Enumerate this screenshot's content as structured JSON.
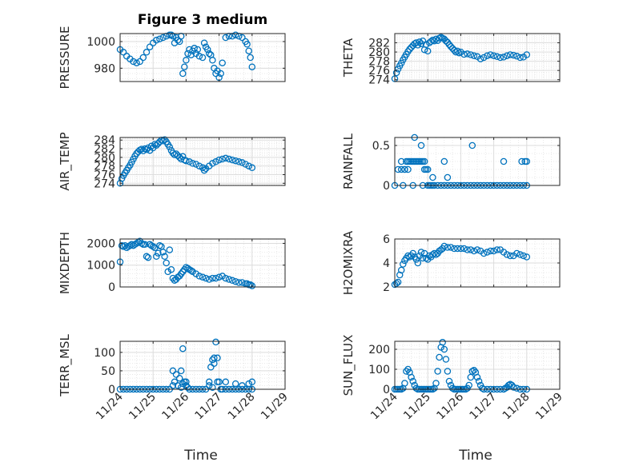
{
  "title": "Figure 3 medium",
  "x_label": "Time",
  "marker_color": "#0072BD",
  "chart_data": [
    {
      "type": "scatter",
      "ylabel": "PRESSURE",
      "xlim": [
        24,
        29
      ],
      "ylim": [
        970,
        1006
      ],
      "yticks": [
        980,
        1000
      ],
      "yticklabels": [
        "980",
        "1000"
      ],
      "xticks": [
        24,
        25,
        26,
        27,
        28,
        29
      ],
      "xticklabels": [
        "11/24",
        "11/25",
        "11/26",
        "11/27",
        "11/28",
        "11/29"
      ],
      "show_xticklabels": false,
      "grid": true,
      "x": [
        24.0,
        24.1,
        24.2,
        24.3,
        24.4,
        24.5,
        24.6,
        24.7,
        24.8,
        24.9,
        25.0,
        25.1,
        25.2,
        25.3,
        25.4,
        25.5,
        25.55,
        25.6,
        25.65,
        25.7,
        25.75,
        25.8,
        25.85,
        25.9,
        25.95,
        26.0,
        26.05,
        26.1,
        26.15,
        26.2,
        26.25,
        26.3,
        26.35,
        26.4,
        26.5,
        26.55,
        26.6,
        26.65,
        26.7,
        26.75,
        26.8,
        26.85,
        26.9,
        26.95,
        27.0,
        27.05,
        27.1,
        27.2,
        27.3,
        27.4,
        27.5,
        27.6,
        27.7,
        27.8,
        27.85,
        27.9,
        27.95,
        28.0
      ],
      "y": [
        994,
        992,
        989,
        987,
        985,
        984,
        985,
        988,
        992,
        996,
        999,
        1001,
        1002,
        1003,
        1004,
        1005,
        1005,
        1004,
        999,
        1003,
        1001,
        1000,
        1004,
        976,
        981,
        986,
        991,
        994,
        990,
        993,
        995,
        991,
        994,
        989,
        988,
        999,
        996,
        994,
        991,
        990,
        986,
        980,
        976,
        978,
        973,
        976,
        984,
        1003,
        1004,
        1004,
        1005,
        1004,
        1003,
        1000,
        998,
        993,
        988,
        981
      ]
    },
    {
      "type": "scatter",
      "ylabel": "THETA",
      "xlim": [
        24,
        29
      ],
      "ylim": [
        273.6,
        284
      ],
      "yticks": [
        274,
        276,
        278,
        280,
        282
      ],
      "yticklabels": [
        "274",
        "276",
        "278",
        "280",
        "282"
      ],
      "xticks": [
        24,
        25,
        26,
        27,
        28,
        29
      ],
      "xticklabels": [
        "11/24",
        "11/25",
        "11/26",
        "11/27",
        "11/28",
        "11/29"
      ],
      "show_xticklabels": false,
      "grid": true,
      "x": [
        24.0,
        24.05,
        24.1,
        24.15,
        24.2,
        24.25,
        24.3,
        24.35,
        24.4,
        24.45,
        24.5,
        24.55,
        24.6,
        24.65,
        24.7,
        24.75,
        24.8,
        24.85,
        24.9,
        24.95,
        25.0,
        25.05,
        25.1,
        25.15,
        25.2,
        25.25,
        25.3,
        25.35,
        25.4,
        25.45,
        25.5,
        25.55,
        25.6,
        25.65,
        25.7,
        25.75,
        25.8,
        25.85,
        25.9,
        25.95,
        26.0,
        26.1,
        26.2,
        26.3,
        26.4,
        26.5,
        26.6,
        26.7,
        26.8,
        26.9,
        27.0,
        27.1,
        27.2,
        27.3,
        27.4,
        27.5,
        27.6,
        27.7,
        27.8,
        27.9,
        28.0
      ],
      "y": [
        274.2,
        275.5,
        276.3,
        277.0,
        277.6,
        278.3,
        278.9,
        279.5,
        280.1,
        280.6,
        281.0,
        281.4,
        281.8,
        282.0,
        281.5,
        282.2,
        281.8,
        282.4,
        280.5,
        281.6,
        280.2,
        282.0,
        282.3,
        282.6,
        282.4,
        282.8,
        282.5,
        283.0,
        283.2,
        283.0,
        282.8,
        282.4,
        282.1,
        281.6,
        281.2,
        280.8,
        280.4,
        280.0,
        280.2,
        279.8,
        280.0,
        279.5,
        279.6,
        279.4,
        279.2,
        279.0,
        278.5,
        278.8,
        279.2,
        279.4,
        279.2,
        279.0,
        278.8,
        278.9,
        279.2,
        279.4,
        279.3,
        279.1,
        278.8,
        278.9,
        279.4
      ]
    },
    {
      "type": "scatter",
      "ylabel": "AIR_TEMP",
      "ylabel_display": "AIR_TEMP",
      "xlim": [
        24,
        29
      ],
      "ylim": [
        273.5,
        284.6
      ],
      "yticks": [
        274,
        276,
        278,
        280,
        282,
        284
      ],
      "yticklabels": [
        "274",
        "276",
        "278",
        "280",
        "282",
        "284"
      ],
      "xticks": [
        24,
        25,
        26,
        27,
        28,
        29
      ],
      "xticklabels": [
        "11/24",
        "11/25",
        "11/26",
        "11/27",
        "11/28",
        "11/29"
      ],
      "show_xticklabels": false,
      "grid": true,
      "x": [
        24.0,
        24.05,
        24.1,
        24.15,
        24.2,
        24.25,
        24.3,
        24.35,
        24.4,
        24.45,
        24.5,
        24.55,
        24.6,
        24.65,
        24.7,
        24.75,
        24.8,
        24.85,
        24.9,
        24.95,
        25.0,
        25.05,
        25.1,
        25.15,
        25.2,
        25.25,
        25.3,
        25.35,
        25.4,
        25.45,
        25.5,
        25.55,
        25.6,
        25.65,
        25.7,
        25.75,
        25.8,
        25.85,
        25.9,
        25.95,
        26.0,
        26.1,
        26.2,
        26.3,
        26.4,
        26.5,
        26.55,
        26.6,
        26.7,
        26.8,
        26.9,
        27.0,
        27.1,
        27.2,
        27.3,
        27.4,
        27.5,
        27.6,
        27.7,
        27.8,
        27.9,
        28.0
      ],
      "y": [
        274.0,
        275.1,
        275.8,
        276.4,
        277.0,
        277.6,
        278.2,
        278.9,
        279.6,
        280.3,
        280.9,
        281.3,
        281.7,
        281.9,
        281.5,
        282.0,
        281.8,
        282.2,
        281.6,
        282.6,
        282.2,
        283.0,
        282.8,
        283.2,
        283.6,
        284.0,
        283.8,
        284.1,
        283.6,
        283.0,
        282.4,
        281.6,
        281.0,
        280.6,
        280.8,
        280.4,
        280.0,
        279.6,
        280.2,
        279.4,
        279.2,
        279.0,
        278.6,
        278.4,
        278.0,
        277.6,
        277.0,
        277.4,
        278.0,
        278.6,
        279.0,
        279.4,
        279.6,
        279.8,
        279.6,
        279.4,
        279.2,
        279.0,
        278.8,
        278.4,
        278.0,
        277.6
      ]
    },
    {
      "type": "scatter",
      "ylabel": "RAINFALL",
      "xlim": [
        24,
        29
      ],
      "ylim": [
        0,
        0.6
      ],
      "yticks": [
        0,
        0.5
      ],
      "yticklabels": [
        "0",
        "0.5"
      ],
      "xticks": [
        24,
        25,
        26,
        27,
        28,
        29
      ],
      "xticklabels": [
        "11/24",
        "11/25",
        "11/26",
        "11/27",
        "11/28",
        "11/29"
      ],
      "show_xticklabels": false,
      "grid": true,
      "x": [
        24.0,
        24.1,
        24.2,
        24.3,
        24.35,
        24.4,
        24.45,
        24.5,
        24.55,
        24.6,
        24.65,
        24.7,
        24.75,
        24.8,
        24.85,
        24.9,
        24.95,
        25.0,
        25.05,
        25.1,
        25.15,
        25.2,
        25.3,
        25.4,
        25.5,
        25.6,
        25.7,
        25.8,
        25.9,
        26.0,
        26.1,
        26.2,
        26.3,
        26.4,
        26.5,
        26.6,
        26.7,
        26.8,
        26.9,
        27.0,
        27.1,
        27.2,
        27.3,
        27.4,
        27.5,
        27.6,
        27.7,
        27.8,
        27.9,
        28.0,
        24.6,
        24.8,
        24.9,
        24.55,
        24.2,
        24.3,
        24.4,
        25.0,
        25.15,
        25.5,
        25.6,
        26.35,
        27.3,
        27.85,
        27.95,
        28.0,
        24.25,
        24.85
      ],
      "y": [
        0,
        0.2,
        0.3,
        0.2,
        0.3,
        0.3,
        0.3,
        0.3,
        0.3,
        0.3,
        0.3,
        0.3,
        0.3,
        0.3,
        0.3,
        0.3,
        0.2,
        0,
        0,
        0,
        0,
        0,
        0,
        0,
        0,
        0,
        0,
        0,
        0,
        0,
        0,
        0,
        0,
        0,
        0,
        0,
        0,
        0,
        0,
        0,
        0,
        0,
        0,
        0,
        0,
        0,
        0,
        0,
        0,
        0,
        0.6,
        0.5,
        0.2,
        0,
        0.2,
        0.2,
        0.2,
        0.2,
        0.1,
        0.3,
        0.1,
        0.5,
        0.3,
        0.3,
        0.3,
        0.3,
        0,
        0
      ]
    },
    {
      "type": "scatter",
      "ylabel": "MIXDEPTH",
      "xlim": [
        24,
        29
      ],
      "ylim": [
        0,
        2200
      ],
      "yticks": [
        0,
        1000,
        2000
      ],
      "yticklabels": [
        "0",
        "1000",
        "2000"
      ],
      "xticks": [
        24,
        25,
        26,
        27,
        28,
        29
      ],
      "xticklabels": [
        "11/24",
        "11/25",
        "11/26",
        "11/27",
        "11/28",
        "11/29"
      ],
      "show_xticklabels": false,
      "grid": true,
      "x": [
        24.0,
        24.05,
        24.1,
        24.15,
        24.2,
        24.25,
        24.3,
        24.35,
        24.4,
        24.45,
        24.5,
        24.55,
        24.6,
        24.65,
        24.7,
        24.75,
        24.8,
        24.85,
        24.9,
        24.95,
        25.0,
        25.05,
        25.1,
        25.15,
        25.2,
        25.25,
        25.3,
        25.35,
        25.4,
        25.45,
        25.5,
        25.55,
        25.6,
        25.65,
        25.7,
        25.75,
        25.8,
        25.85,
        25.9,
        25.95,
        26.0,
        26.05,
        26.1,
        26.15,
        26.2,
        26.3,
        26.4,
        26.5,
        26.6,
        26.7,
        26.8,
        26.9,
        27.0,
        27.1,
        27.2,
        27.3,
        27.4,
        27.5,
        27.6,
        27.7,
        27.8,
        27.85,
        27.9,
        27.95,
        28.0
      ],
      "y": [
        1150,
        1900,
        1850,
        1900,
        1800,
        1850,
        1900,
        1950,
        1900,
        1950,
        2000,
        2050,
        2100,
        2000,
        1950,
        1950,
        1400,
        1350,
        1950,
        1900,
        1850,
        1800,
        1400,
        1550,
        1900,
        1850,
        1600,
        1400,
        1100,
        700,
        1700,
        800,
        400,
        300,
        350,
        450,
        500,
        600,
        700,
        800,
        900,
        850,
        800,
        750,
        700,
        600,
        500,
        450,
        400,
        350,
        400,
        400,
        450,
        500,
        400,
        350,
        300,
        250,
        200,
        200,
        150,
        150,
        100,
        100,
        50
      ]
    },
    {
      "type": "scatter",
      "ylabel": "H2OMIXRA",
      "xlim": [
        24,
        29
      ],
      "ylim": [
        2,
        6
      ],
      "yticks": [
        2,
        4,
        6
      ],
      "yticklabels": [
        "2",
        "4",
        "6"
      ],
      "xticks": [
        24,
        25,
        26,
        27,
        28,
        29
      ],
      "xticklabels": [
        "11/24",
        "11/25",
        "11/26",
        "11/27",
        "11/28",
        "11/29"
      ],
      "show_xticklabels": false,
      "grid": true,
      "x": [
        24.0,
        24.05,
        24.1,
        24.15,
        24.2,
        24.25,
        24.3,
        24.35,
        24.4,
        24.45,
        24.5,
        24.55,
        24.6,
        24.65,
        24.7,
        24.75,
        24.8,
        24.85,
        24.9,
        24.95,
        25.0,
        25.05,
        25.1,
        25.15,
        25.2,
        25.25,
        25.3,
        25.35,
        25.4,
        25.45,
        25.5,
        25.6,
        25.7,
        25.8,
        25.9,
        26.0,
        26.1,
        26.2,
        26.3,
        26.4,
        26.5,
        26.6,
        26.7,
        26.8,
        26.9,
        27.0,
        27.1,
        27.2,
        27.3,
        27.4,
        27.5,
        27.6,
        27.7,
        27.8,
        27.9,
        28.0
      ],
      "y": [
        2.2,
        2.3,
        2.4,
        3.0,
        3.4,
        3.9,
        4.2,
        4.4,
        4.6,
        4.5,
        4.6,
        4.8,
        4.5,
        4.3,
        4.0,
        4.6,
        4.9,
        4.4,
        4.8,
        4.4,
        4.3,
        4.6,
        4.5,
        4.7,
        4.8,
        4.7,
        4.8,
        5.0,
        5.1,
        5.2,
        5.4,
        5.3,
        5.3,
        5.2,
        5.2,
        5.2,
        5.2,
        5.1,
        5.1,
        5.0,
        5.1,
        5.0,
        4.8,
        4.9,
        5.0,
        5.0,
        5.1,
        5.1,
        4.9,
        4.7,
        4.6,
        4.6,
        4.8,
        4.7,
        4.6,
        4.5
      ]
    },
    {
      "type": "scatter",
      "ylabel": "TERR_MSL",
      "ylabel_display": "TERR_MSL",
      "xlim": [
        24,
        29
      ],
      "ylim": [
        0,
        130
      ],
      "yticks": [
        0,
        50,
        100
      ],
      "yticklabels": [
        "0",
        "50",
        "100"
      ],
      "xticks": [
        24,
        25,
        26,
        27,
        28,
        29
      ],
      "xticklabels": [
        "11/24",
        "11/25",
        "11/26",
        "11/27",
        "11/28",
        "11/29"
      ],
      "show_xticklabels": true,
      "grid": true,
      "x": [
        24.0,
        24.1,
        24.2,
        24.3,
        24.4,
        24.5,
        24.6,
        24.7,
        24.8,
        24.9,
        25.0,
        25.1,
        25.2,
        25.3,
        25.4,
        25.5,
        25.6,
        25.65,
        25.7,
        25.75,
        25.8,
        25.85,
        25.9,
        25.95,
        26.0,
        26.05,
        26.1,
        26.2,
        26.3,
        26.4,
        26.5,
        26.6,
        26.7,
        26.75,
        26.8,
        26.85,
        26.9,
        26.95,
        27.0,
        27.05,
        27.1,
        27.2,
        27.3,
        27.4,
        27.5,
        27.6,
        27.7,
        27.8,
        27.9,
        28.0,
        25.6,
        25.9,
        25.85,
        26.0,
        26.7,
        26.8,
        26.85,
        26.95,
        27.2,
        27.5,
        27.7,
        27.9,
        28.0
      ],
      "y": [
        0,
        0,
        0,
        0,
        0,
        0,
        0,
        0,
        0,
        0,
        0,
        0,
        0,
        0,
        0,
        0,
        50,
        20,
        40,
        10,
        30,
        50,
        110,
        20,
        10,
        5,
        0,
        0,
        0,
        0,
        0,
        0,
        20,
        60,
        80,
        85,
        128,
        85,
        20,
        0,
        0,
        0,
        0,
        0,
        0,
        0,
        0,
        0,
        0,
        0,
        10,
        15,
        5,
        20,
        10,
        5,
        70,
        20,
        20,
        15,
        10,
        15,
        20
      ]
    },
    {
      "type": "scatter",
      "ylabel": "SUN_FLUX",
      "ylabel_display": "SUN_FLUX",
      "xlim": [
        24,
        29
      ],
      "ylim": [
        0,
        240
      ],
      "yticks": [
        0,
        100,
        200
      ],
      "yticklabels": [
        "0",
        "100",
        "200"
      ],
      "xticks": [
        24,
        25,
        26,
        27,
        28,
        29
      ],
      "xticklabels": [
        "11/24",
        "11/25",
        "11/26",
        "11/27",
        "11/28",
        "11/29"
      ],
      "show_xticklabels": true,
      "grid": true,
      "x": [
        24.0,
        24.05,
        24.1,
        24.15,
        24.2,
        24.25,
        24.3,
        24.35,
        24.4,
        24.45,
        24.5,
        24.55,
        24.6,
        24.65,
        24.7,
        24.75,
        24.8,
        24.85,
        24.9,
        24.95,
        25.0,
        25.05,
        25.1,
        25.15,
        25.2,
        25.25,
        25.3,
        25.35,
        25.4,
        25.45,
        25.5,
        25.55,
        25.6,
        25.65,
        25.7,
        25.75,
        25.8,
        25.85,
        25.9,
        25.95,
        26.0,
        26.05,
        26.1,
        26.15,
        26.2,
        26.25,
        26.3,
        26.35,
        26.4,
        26.45,
        26.5,
        26.55,
        26.6,
        26.65,
        26.7,
        26.8,
        26.9,
        27.0,
        27.1,
        27.2,
        27.3,
        27.35,
        27.4,
        27.45,
        27.5,
        27.55,
        27.6,
        27.7,
        27.8,
        27.9,
        28.0
      ],
      "y": [
        0,
        0,
        0,
        0,
        0,
        5,
        30,
        90,
        100,
        85,
        60,
        40,
        20,
        5,
        0,
        0,
        0,
        0,
        0,
        0,
        0,
        0,
        0,
        0,
        5,
        30,
        90,
        160,
        210,
        235,
        200,
        150,
        90,
        40,
        20,
        5,
        0,
        0,
        0,
        0,
        0,
        0,
        0,
        0,
        5,
        20,
        60,
        90,
        95,
        85,
        60,
        40,
        20,
        5,
        0,
        0,
        0,
        0,
        0,
        0,
        0,
        5,
        10,
        20,
        25,
        20,
        10,
        5,
        0,
        0,
        0
      ]
    }
  ]
}
